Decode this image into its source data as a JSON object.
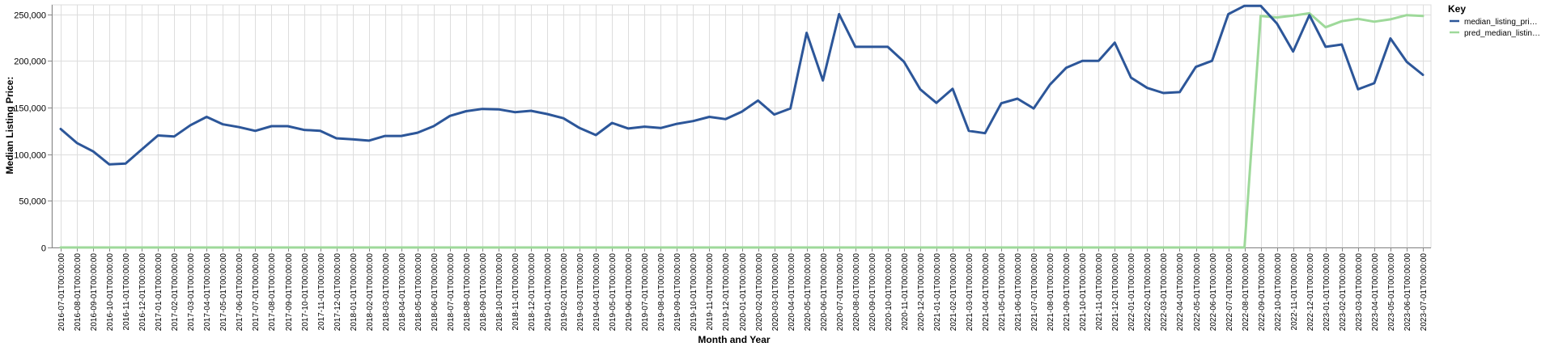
{
  "chart_data": {
    "type": "line",
    "xlabel": "Month and Year",
    "ylabel": "Median Listing Price:",
    "ylim": [
      0,
      260000
    ],
    "yticks": [
      0,
      50000,
      100000,
      150000,
      200000,
      250000
    ],
    "ytick_labels": [
      "0",
      "50,000",
      "100,000",
      "150,000",
      "200,000",
      "250,000"
    ],
    "grid": true,
    "legend_placement": "right",
    "legend_title": "Key",
    "x": [
      "2016-07-01T00:00:00",
      "2016-08-01T00:00:00",
      "2016-09-01T00:00:00",
      "2016-10-01T00:00:00",
      "2016-11-01T00:00:00",
      "2016-12-01T00:00:00",
      "2017-01-01T00:00:00",
      "2017-02-01T00:00:00",
      "2017-03-01T00:00:00",
      "2017-04-01T00:00:00",
      "2017-05-01T00:00:00",
      "2017-06-01T00:00:00",
      "2017-07-01T00:00:00",
      "2017-08-01T00:00:00",
      "2017-09-01T00:00:00",
      "2017-10-01T00:00:00",
      "2017-11-01T00:00:00",
      "2017-12-01T00:00:00",
      "2018-01-01T00:00:00",
      "2018-02-01T00:00:00",
      "2018-03-01T00:00:00",
      "2018-04-01T00:00:00",
      "2018-05-01T00:00:00",
      "2018-06-01T00:00:00",
      "2018-07-01T00:00:00",
      "2018-08-01T00:00:00",
      "2018-09-01T00:00:00",
      "2018-10-01T00:00:00",
      "2018-11-01T00:00:00",
      "2018-12-01T00:00:00",
      "2019-01-01T00:00:00",
      "2019-02-01T00:00:00",
      "2019-03-01T00:00:00",
      "2019-04-01T00:00:00",
      "2019-05-01T00:00:00",
      "2019-06-01T00:00:00",
      "2019-07-01T00:00:00",
      "2019-08-01T00:00:00",
      "2019-09-01T00:00:00",
      "2019-10-01T00:00:00",
      "2019-11-01T00:00:00",
      "2019-12-01T00:00:00",
      "2020-01-01T00:00:00",
      "2020-02-01T00:00:00",
      "2020-03-01T00:00:00",
      "2020-04-01T00:00:00",
      "2020-05-01T00:00:00",
      "2020-06-01T00:00:00",
      "2020-07-01T00:00:00",
      "2020-08-01T00:00:00",
      "2020-09-01T00:00:00",
      "2020-10-01T00:00:00",
      "2020-11-01T00:00:00",
      "2020-12-01T00:00:00",
      "2021-01-01T00:00:00",
      "2021-02-01T00:00:00",
      "2021-03-01T00:00:00",
      "2021-04-01T00:00:00",
      "2021-05-01T00:00:00",
      "2021-06-01T00:00:00",
      "2021-07-01T00:00:00",
      "2021-08-01T00:00:00",
      "2021-09-01T00:00:00",
      "2021-10-01T00:00:00",
      "2021-11-01T00:00:00",
      "2021-12-01T00:00:00",
      "2022-01-01T00:00:00",
      "2022-02-01T00:00:00",
      "2022-03-01T00:00:00",
      "2022-04-01T00:00:00",
      "2022-05-01T00:00:00",
      "2022-06-01T00:00:00",
      "2022-07-01T00:00:00",
      "2022-08-01T00:00:00",
      "2022-09-01T00:00:00",
      "2022-10-01T00:00:00",
      "2022-11-01T00:00:00",
      "2022-12-01T00:00:00",
      "2023-01-01T00:00:00",
      "2023-02-01T00:00:00",
      "2023-03-01T00:00:00",
      "2023-04-01T00:00:00",
      "2023-05-01T00:00:00",
      "2023-06-01T00:00:00",
      "2023-07-01T00:00:00"
    ],
    "series": [
      {
        "name": "median_listing_pri…",
        "color": "#2c5699",
        "values": [
          127000,
          112000,
          103000,
          89000,
          90000,
          105000,
          120000,
          119000,
          131000,
          140000,
          132000,
          129000,
          125000,
          130000,
          130000,
          126000,
          125000,
          117000,
          116000,
          114500,
          119500,
          119500,
          123000,
          130000,
          141000,
          146000,
          148500,
          148000,
          145000,
          146500,
          143000,
          138500,
          128000,
          120500,
          133500,
          127500,
          129500,
          128000,
          132500,
          135500,
          140000,
          137500,
          145500,
          157500,
          142500,
          149000,
          230000,
          179000,
          250000,
          215000,
          215000,
          215000,
          199000,
          169500,
          155000,
          170000,
          125000,
          122500,
          154500,
          159500,
          149000,
          174500,
          192500,
          200000,
          200000,
          219500,
          182000,
          171000,
          165500,
          166500,
          193500,
          200000,
          250000,
          259000,
          259000,
          240000,
          210000,
          249000,
          215000,
          217500,
          169500,
          176000,
          224000,
          199000,
          185000
        ]
      },
      {
        "name": "pred_median_listin…",
        "color": "#9ed99a",
        "values": [
          0,
          0,
          0,
          0,
          0,
          0,
          0,
          0,
          0,
          0,
          0,
          0,
          0,
          0,
          0,
          0,
          0,
          0,
          0,
          0,
          0,
          0,
          0,
          0,
          0,
          0,
          0,
          0,
          0,
          0,
          0,
          0,
          0,
          0,
          0,
          0,
          0,
          0,
          0,
          0,
          0,
          0,
          0,
          0,
          0,
          0,
          0,
          0,
          0,
          0,
          0,
          0,
          0,
          0,
          0,
          0,
          0,
          0,
          0,
          0,
          0,
          0,
          0,
          0,
          0,
          0,
          0,
          0,
          0,
          0,
          0,
          0,
          0,
          0,
          248000,
          246500,
          248500,
          251000,
          236000,
          242500,
          245000,
          242000,
          244500,
          249000,
          248000
        ]
      }
    ]
  }
}
